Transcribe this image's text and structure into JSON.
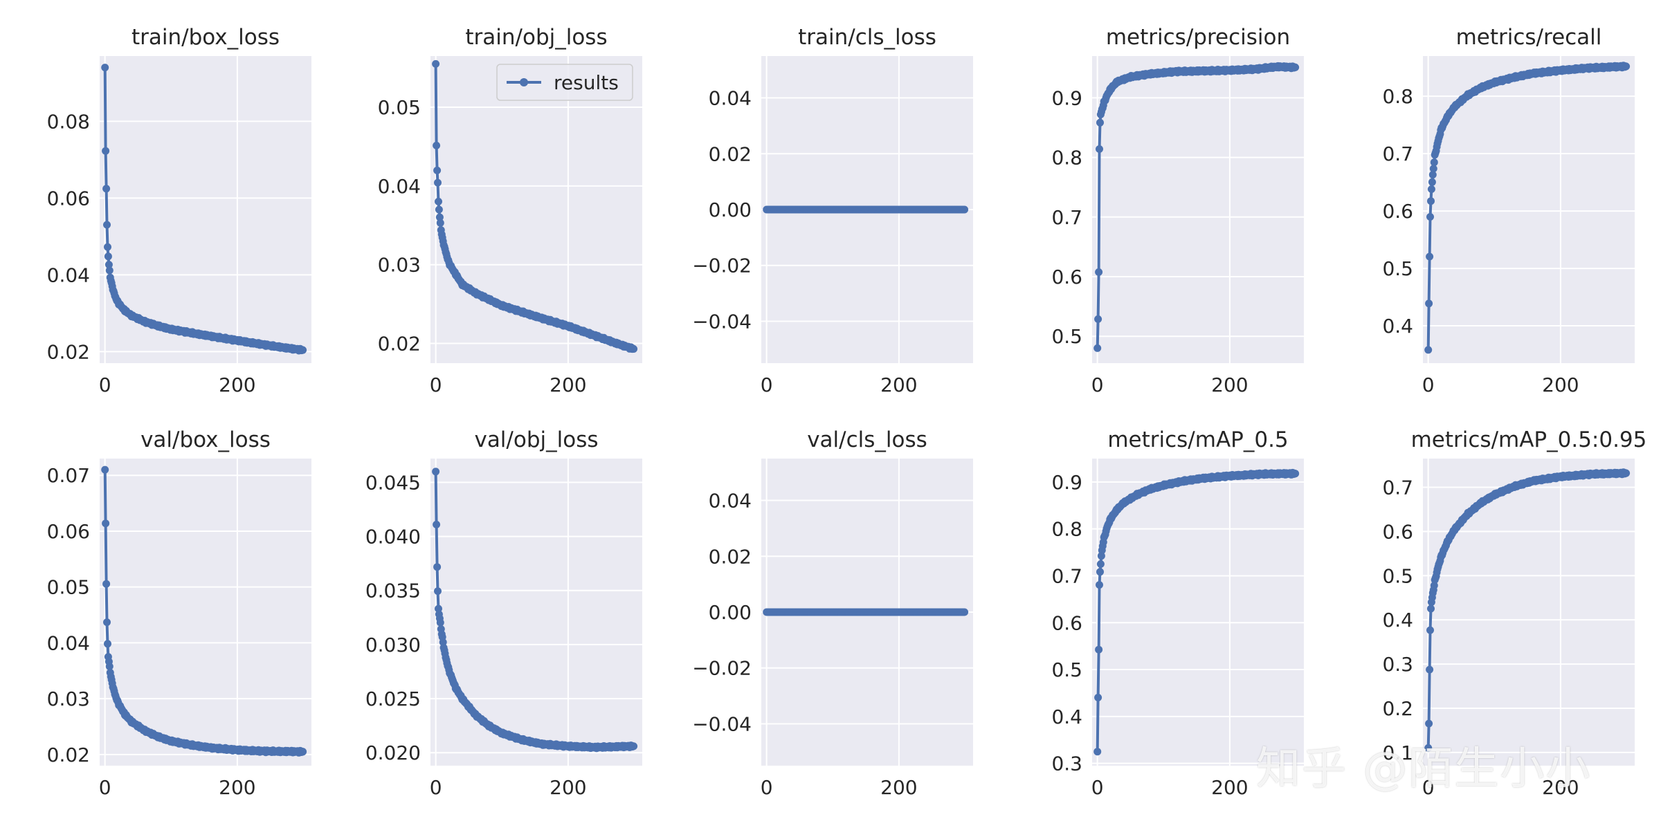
{
  "colors": {
    "axes_face": "#eaeaf2",
    "grid": "#ffffff",
    "series": "#4c72b0",
    "text": "#262626",
    "background": "#ffffff"
  },
  "watermark": "知乎 @陌生小小",
  "chart_data": [
    {
      "id": "train-box-loss",
      "type": "line",
      "title": "train/box_loss",
      "xlim": [
        -8,
        312
      ],
      "ylim": [
        0.017,
        0.097
      ],
      "xticks": [
        0,
        200
      ],
      "xtick_labels": [
        "0",
        "200"
      ],
      "yticks": [
        0.02,
        0.04,
        0.06,
        0.08
      ],
      "ytick_labels": [
        "0.02",
        "0.04",
        "0.06",
        "0.08"
      ],
      "anchors": [
        [
          0,
          0.094
        ],
        [
          1,
          0.072
        ],
        [
          2,
          0.0625
        ],
        [
          3,
          0.0532
        ],
        [
          4,
          0.0472
        ],
        [
          5,
          0.0448
        ],
        [
          6,
          0.0426
        ],
        [
          8,
          0.0395
        ],
        [
          10,
          0.0376
        ],
        [
          15,
          0.0345
        ],
        [
          20,
          0.0327
        ],
        [
          30,
          0.0307
        ],
        [
          40,
          0.0294
        ],
        [
          60,
          0.0278
        ],
        [
          80,
          0.0267
        ],
        [
          100,
          0.0258
        ],
        [
          130,
          0.0249
        ],
        [
          160,
          0.024
        ],
        [
          200,
          0.0229
        ],
        [
          240,
          0.0218
        ],
        [
          280,
          0.0208
        ],
        [
          299,
          0.0204
        ]
      ],
      "series_name": "results"
    },
    {
      "id": "train-obj-loss",
      "type": "line",
      "title": "train/obj_loss",
      "xlim": [
        -8,
        312
      ],
      "ylim": [
        0.0175,
        0.0565
      ],
      "xticks": [
        0,
        200
      ],
      "xtick_labels": [
        "0",
        "200"
      ],
      "yticks": [
        0.02,
        0.03,
        0.04,
        0.05
      ],
      "ytick_labels": [
        "0.02",
        "0.03",
        "0.04",
        "0.05"
      ],
      "anchors": [
        [
          0,
          0.0555
        ],
        [
          1,
          0.045
        ],
        [
          2,
          0.042
        ],
        [
          3,
          0.0405
        ],
        [
          4,
          0.038
        ],
        [
          6,
          0.036
        ],
        [
          8,
          0.0345
        ],
        [
          10,
          0.0333
        ],
        [
          15,
          0.0316
        ],
        [
          20,
          0.0302
        ],
        [
          30,
          0.0288
        ],
        [
          40,
          0.0275
        ],
        [
          60,
          0.0264
        ],
        [
          80,
          0.0256
        ],
        [
          100,
          0.0248
        ],
        [
          130,
          0.024
        ],
        [
          160,
          0.0232
        ],
        [
          200,
          0.0222
        ],
        [
          240,
          0.021
        ],
        [
          280,
          0.0198
        ],
        [
          299,
          0.0193
        ]
      ],
      "series_name": "results",
      "legend": {
        "label": "results",
        "position": "top-right"
      }
    },
    {
      "id": "train-cls-loss",
      "type": "line",
      "title": "train/cls_loss",
      "xlim": [
        -8,
        312
      ],
      "ylim": [
        -0.055,
        0.055
      ],
      "xticks": [
        0,
        200
      ],
      "xtick_labels": [
        "0",
        "200"
      ],
      "yticks": [
        -0.04,
        -0.02,
        0.0,
        0.02,
        0.04
      ],
      "ytick_labels": [
        "−0.04",
        "−0.02",
        "0.00",
        "0.02",
        "0.04"
      ],
      "anchors": [
        [
          0,
          0.0
        ],
        [
          299,
          0.0
        ]
      ],
      "series_name": "results"
    },
    {
      "id": "metrics-precision",
      "type": "line",
      "title": "metrics/precision",
      "xlim": [
        -8,
        312
      ],
      "ylim": [
        0.455,
        0.97
      ],
      "xticks": [
        0,
        200
      ],
      "xtick_labels": [
        "0",
        "200"
      ],
      "yticks": [
        0.5,
        0.6,
        0.7,
        0.8,
        0.9
      ],
      "ytick_labels": [
        "0.5",
        "0.6",
        "0.7",
        "0.8",
        "0.9"
      ],
      "anchors": [
        [
          0,
          0.48
        ],
        [
          1,
          0.527
        ],
        [
          2,
          0.608
        ],
        [
          3,
          0.815
        ],
        [
          4,
          0.858
        ],
        [
          5,
          0.872
        ],
        [
          7,
          0.88
        ],
        [
          10,
          0.892
        ],
        [
          15,
          0.905
        ],
        [
          20,
          0.915
        ],
        [
          30,
          0.927
        ],
        [
          50,
          0.935
        ],
        [
          80,
          0.94
        ],
        [
          120,
          0.944
        ],
        [
          160,
          0.945
        ],
        [
          200,
          0.946
        ],
        [
          240,
          0.948
        ],
        [
          270,
          0.952
        ],
        [
          299,
          0.951
        ]
      ],
      "series_name": "results"
    },
    {
      "id": "metrics-recall",
      "type": "line",
      "title": "metrics/recall",
      "xlim": [
        -8,
        312
      ],
      "ylim": [
        0.335,
        0.87
      ],
      "xticks": [
        0,
        200
      ],
      "xtick_labels": [
        "0",
        "200"
      ],
      "yticks": [
        0.4,
        0.5,
        0.6,
        0.7,
        0.8
      ],
      "ytick_labels": [
        "0.4",
        "0.5",
        "0.6",
        "0.7",
        "0.8"
      ],
      "anchors": [
        [
          0,
          0.358
        ],
        [
          1,
          0.437
        ],
        [
          2,
          0.521
        ],
        [
          3,
          0.591
        ],
        [
          4,
          0.617
        ],
        [
          5,
          0.638
        ],
        [
          6,
          0.65
        ],
        [
          8,
          0.675
        ],
        [
          10,
          0.696
        ],
        [
          15,
          0.722
        ],
        [
          20,
          0.744
        ],
        [
          30,
          0.766
        ],
        [
          40,
          0.782
        ],
        [
          60,
          0.802
        ],
        [
          80,
          0.815
        ],
        [
          100,
          0.824
        ],
        [
          130,
          0.833
        ],
        [
          160,
          0.84
        ],
        [
          200,
          0.845
        ],
        [
          240,
          0.849
        ],
        [
          299,
          0.852
        ]
      ],
      "series_name": "results"
    },
    {
      "id": "val-box-loss",
      "type": "line",
      "title": "val/box_loss",
      "xlim": [
        -8,
        312
      ],
      "ylim": [
        0.018,
        0.073
      ],
      "xticks": [
        0,
        200
      ],
      "xtick_labels": [
        "0",
        "200"
      ],
      "yticks": [
        0.02,
        0.03,
        0.04,
        0.05,
        0.06,
        0.07
      ],
      "ytick_labels": [
        "0.02",
        "0.03",
        "0.04",
        "0.05",
        "0.06",
        "0.07"
      ],
      "anchors": [
        [
          0,
          0.071
        ],
        [
          1,
          0.0612
        ],
        [
          2,
          0.0506
        ],
        [
          3,
          0.0438
        ],
        [
          4,
          0.0398
        ],
        [
          5,
          0.0375
        ],
        [
          6,
          0.0366
        ],
        [
          8,
          0.0348
        ],
        [
          10,
          0.0332
        ],
        [
          15,
          0.0308
        ],
        [
          20,
          0.0292
        ],
        [
          30,
          0.0272
        ],
        [
          40,
          0.0259
        ],
        [
          60,
          0.0243
        ],
        [
          80,
          0.0232
        ],
        [
          100,
          0.0224
        ],
        [
          130,
          0.0217
        ],
        [
          160,
          0.0212
        ],
        [
          200,
          0.0208
        ],
        [
          240,
          0.0206
        ],
        [
          299,
          0.0205
        ]
      ],
      "series_name": "results"
    },
    {
      "id": "val-obj-loss",
      "type": "line",
      "title": "val/obj_loss",
      "xlim": [
        -8,
        312
      ],
      "ylim": [
        0.0188,
        0.0472
      ],
      "xticks": [
        0,
        200
      ],
      "xtick_labels": [
        "0",
        "200"
      ],
      "yticks": [
        0.02,
        0.025,
        0.03,
        0.035,
        0.04,
        0.045
      ],
      "ytick_labels": [
        "0.020",
        "0.025",
        "0.030",
        "0.035",
        "0.040",
        "0.045"
      ],
      "anchors": [
        [
          0,
          0.046
        ],
        [
          1,
          0.041
        ],
        [
          2,
          0.0372
        ],
        [
          3,
          0.035
        ],
        [
          4,
          0.0333
        ],
        [
          5,
          0.0328
        ],
        [
          7,
          0.032
        ],
        [
          9,
          0.031
        ],
        [
          12,
          0.0298
        ],
        [
          15,
          0.0288
        ],
        [
          20,
          0.0276
        ],
        [
          30,
          0.026
        ],
        [
          40,
          0.025
        ],
        [
          60,
          0.0235
        ],
        [
          80,
          0.0225
        ],
        [
          100,
          0.0218
        ],
        [
          130,
          0.0212
        ],
        [
          160,
          0.0208
        ],
        [
          200,
          0.0206
        ],
        [
          240,
          0.0205
        ],
        [
          299,
          0.0206
        ]
      ],
      "series_name": "results"
    },
    {
      "id": "val-cls-loss",
      "type": "line",
      "title": "val/cls_loss",
      "xlim": [
        -8,
        312
      ],
      "ylim": [
        -0.055,
        0.055
      ],
      "xticks": [
        0,
        200
      ],
      "xtick_labels": [
        "0",
        "200"
      ],
      "yticks": [
        -0.04,
        -0.02,
        0.0,
        0.02,
        0.04
      ],
      "ytick_labels": [
        "−0.04",
        "−0.02",
        "0.00",
        "0.02",
        "0.04"
      ],
      "anchors": [
        [
          0,
          0.0
        ],
        [
          299,
          0.0
        ]
      ],
      "series_name": "results"
    },
    {
      "id": "metrics-map-05",
      "type": "line",
      "title": "metrics/mAP_0.5",
      "xlim": [
        -8,
        312
      ],
      "ylim": [
        0.295,
        0.95
      ],
      "xticks": [
        0,
        200
      ],
      "xtick_labels": [
        "0",
        "200"
      ],
      "yticks": [
        0.3,
        0.4,
        0.5,
        0.6,
        0.7,
        0.8,
        0.9
      ],
      "ytick_labels": [
        "0.3",
        "0.4",
        "0.5",
        "0.6",
        "0.7",
        "0.8",
        "0.9"
      ],
      "anchors": [
        [
          0,
          0.325
        ],
        [
          1,
          0.438
        ],
        [
          2,
          0.543
        ],
        [
          3,
          0.682
        ],
        [
          4,
          0.708
        ],
        [
          5,
          0.725
        ],
        [
          6,
          0.742
        ],
        [
          8,
          0.765
        ],
        [
          10,
          0.78
        ],
        [
          15,
          0.805
        ],
        [
          20,
          0.822
        ],
        [
          30,
          0.842
        ],
        [
          40,
          0.856
        ],
        [
          60,
          0.873
        ],
        [
          80,
          0.885
        ],
        [
          100,
          0.893
        ],
        [
          130,
          0.902
        ],
        [
          160,
          0.908
        ],
        [
          200,
          0.913
        ],
        [
          250,
          0.917
        ],
        [
          299,
          0.918
        ]
      ],
      "series_name": "results"
    },
    {
      "id": "metrics-map-05-095",
      "type": "line",
      "title": "metrics/mAP_0.5:0.95",
      "xlim": [
        -8,
        312
      ],
      "ylim": [
        0.07,
        0.765
      ],
      "xticks": [
        0,
        200
      ],
      "xtick_labels": [
        "0",
        "200"
      ],
      "yticks": [
        0.1,
        0.2,
        0.3,
        0.4,
        0.5,
        0.6,
        0.7
      ],
      "ytick_labels": [
        "0.1",
        "0.2",
        "0.3",
        "0.4",
        "0.5",
        "0.6",
        "0.7"
      ],
      "anchors": [
        [
          0,
          0.11
        ],
        [
          1,
          0.163
        ],
        [
          2,
          0.288
        ],
        [
          3,
          0.378
        ],
        [
          4,
          0.425
        ],
        [
          5,
          0.44
        ],
        [
          7,
          0.46
        ],
        [
          10,
          0.488
        ],
        [
          15,
          0.52
        ],
        [
          20,
          0.545
        ],
        [
          30,
          0.58
        ],
        [
          40,
          0.605
        ],
        [
          60,
          0.64
        ],
        [
          80,
          0.665
        ],
        [
          100,
          0.683
        ],
        [
          130,
          0.702
        ],
        [
          160,
          0.715
        ],
        [
          200,
          0.724
        ],
        [
          250,
          0.73
        ],
        [
          299,
          0.732
        ]
      ],
      "series_name": "results"
    }
  ]
}
